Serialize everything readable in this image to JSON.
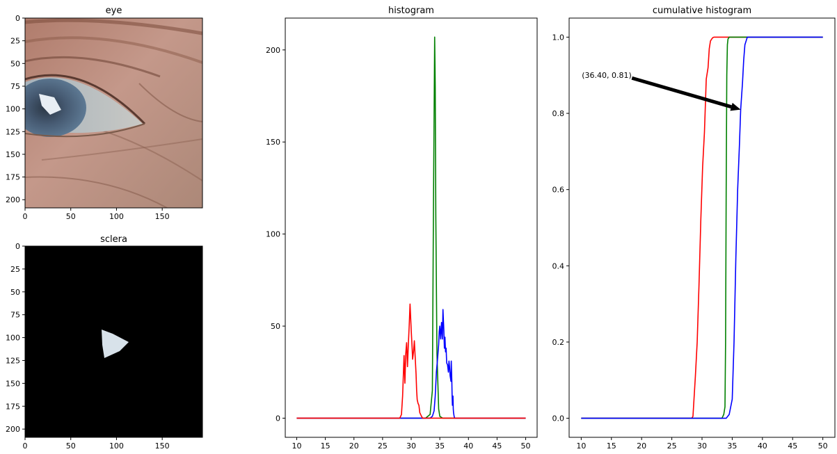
{
  "figure": {
    "panels": {
      "eye": {
        "title": "eye",
        "xlim": [
          0,
          194
        ],
        "ylim": [
          209,
          0
        ],
        "xticks": [
          0,
          50,
          100,
          150
        ],
        "yticks": [
          0,
          25,
          50,
          75,
          100,
          125,
          150,
          175,
          200
        ]
      },
      "sclera": {
        "title": "sclera",
        "xlim": [
          0,
          194
        ],
        "ylim": [
          209,
          0
        ],
        "xticks": [
          0,
          50,
          100,
          150
        ],
        "yticks": [
          0,
          25,
          50,
          75,
          100,
          125,
          150,
          175,
          200
        ]
      }
    }
  },
  "chart_data": [
    {
      "type": "line",
      "title": "histogram",
      "xlabel": "",
      "ylabel": "",
      "xlim": [
        8,
        52
      ],
      "ylim": [
        -10.4,
        217.3
      ],
      "xticks": [
        10,
        15,
        20,
        25,
        30,
        35,
        40,
        45,
        50
      ],
      "yticks": [
        0,
        50,
        100,
        150,
        200
      ],
      "grid": false,
      "series": [
        {
          "color": "#008000",
          "x": [
            10,
            32.5,
            33.3,
            33.7,
            33.9,
            34.1,
            34.2,
            34.3,
            34.5,
            34.8,
            35.0,
            35.5,
            50
          ],
          "y": [
            0,
            0,
            2,
            15,
            120,
            207,
            180,
            110,
            35,
            5,
            1,
            0,
            0
          ]
        },
        {
          "color": "#0000ff",
          "x": [
            10,
            33.3,
            33.7,
            34.0,
            34.2,
            34.4,
            34.6,
            34.8,
            34.9,
            35.0,
            35.15,
            35.3,
            35.45,
            35.55,
            35.7,
            35.8,
            35.9,
            36.0,
            36.1,
            36.2,
            36.35,
            36.5,
            36.6,
            36.7,
            36.8,
            36.95,
            37.0,
            37.1,
            37.15,
            37.2,
            37.3,
            37.35,
            37.4,
            37.5,
            37.6,
            50
          ],
          "y": [
            0,
            0,
            1,
            4,
            12,
            25,
            32,
            40,
            47,
            50,
            43,
            52,
            43,
            59,
            48,
            38,
            44,
            36,
            38,
            30,
            29,
            25,
            31,
            28,
            23,
            20,
            31,
            20,
            12,
            7,
            12,
            5,
            3,
            1,
            0,
            0
          ]
        },
        {
          "color": "#ff0000",
          "x": [
            10,
            28.0,
            28.3,
            28.5,
            28.75,
            28.9,
            29.05,
            29.2,
            29.35,
            29.5,
            29.65,
            29.8,
            29.9,
            30.0,
            30.15,
            30.25,
            30.4,
            30.55,
            30.7,
            30.85,
            30.95,
            31.05,
            31.2,
            31.35,
            31.5,
            31.65,
            31.8,
            32.0,
            32.3,
            50
          ],
          "y": [
            0,
            0,
            2,
            12,
            34,
            19,
            35,
            41,
            28,
            40,
            50,
            62,
            55,
            48,
            39,
            32,
            36,
            42,
            33,
            24,
            15,
            10,
            8,
            7,
            3,
            2,
            1,
            0,
            0,
            0
          ]
        }
      ]
    },
    {
      "type": "line",
      "title": "cumulative histogram",
      "xlabel": "",
      "ylabel": "",
      "xlim": [
        8,
        52
      ],
      "ylim": [
        -0.05,
        1.05
      ],
      "xticks": [
        10,
        15,
        20,
        25,
        30,
        35,
        40,
        45,
        50
      ],
      "yticks": [
        0.0,
        0.2,
        0.4,
        0.6,
        0.8,
        1.0
      ],
      "tick_format": "fixed1",
      "grid": false,
      "annotation": {
        "text": "(36.40, 0.81)",
        "text_x": 10.1,
        "text_y": 0.9,
        "point_x": 36.4,
        "point_y": 0.81
      },
      "series": [
        {
          "color": "#ff0000",
          "x": [
            10,
            28.3,
            28.5,
            28.9,
            29.2,
            29.5,
            29.8,
            30.1,
            30.4,
            30.7,
            31.0,
            31.2,
            31.4,
            31.6,
            31.8,
            32.0,
            32.3,
            50
          ],
          "y": [
            0,
            0,
            0.005,
            0.11,
            0.2,
            0.35,
            0.52,
            0.66,
            0.75,
            0.89,
            0.92,
            0.97,
            0.99,
            0.995,
            0.999,
            1.0,
            1.0,
            1.0
          ],
          "colorName": "red"
        },
        {
          "color": "#008000",
          "x": [
            10,
            33.3,
            33.6,
            33.8,
            33.9,
            34.0,
            34.1,
            34.2,
            34.3,
            34.5,
            50
          ],
          "y": [
            0,
            0,
            0.01,
            0.03,
            0.2,
            0.6,
            0.9,
            0.98,
            0.995,
            1.0,
            1.0
          ],
          "colorName": "green"
        },
        {
          "color": "#0000ff",
          "x": [
            10,
            34.0,
            34.5,
            35.0,
            35.3,
            35.6,
            35.9,
            36.2,
            36.4,
            36.7,
            36.9,
            37.1,
            37.3,
            37.5,
            50
          ],
          "y": [
            0,
            0,
            0.01,
            0.05,
            0.2,
            0.42,
            0.6,
            0.72,
            0.81,
            0.88,
            0.94,
            0.98,
            0.99,
            1.0,
            1.0
          ],
          "colorName": "blue"
        }
      ]
    }
  ]
}
